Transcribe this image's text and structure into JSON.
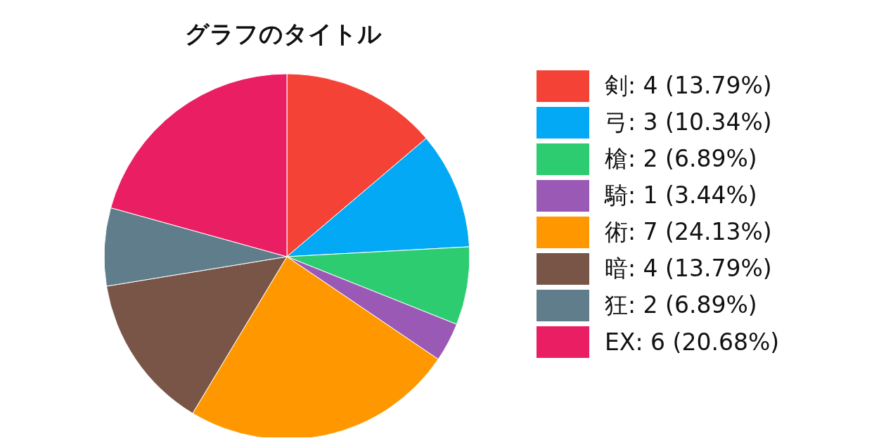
{
  "chart_data": {
    "type": "pie",
    "title": "グラフのタイトル",
    "categories": [
      "剣: 4 (13.79%)",
      "弓: 3 (10.34%)",
      "槍: 2 (6.89%)",
      "騎: 1 (3.44%)",
      "術: 7 (24.13%)",
      "暗: 4 (13.79%)",
      "狂: 2 (6.89%)",
      "EX: 6 (20.68%)"
    ],
    "values": [
      4,
      3,
      2,
      1,
      7,
      4,
      2,
      6
    ],
    "colors": [
      "#f44336",
      "#03a9f4",
      "#2ecc71",
      "#9b59b6",
      "#ff9800",
      "#795548",
      "#607d8b",
      "#e91e63"
    ],
    "legend": "right"
  }
}
